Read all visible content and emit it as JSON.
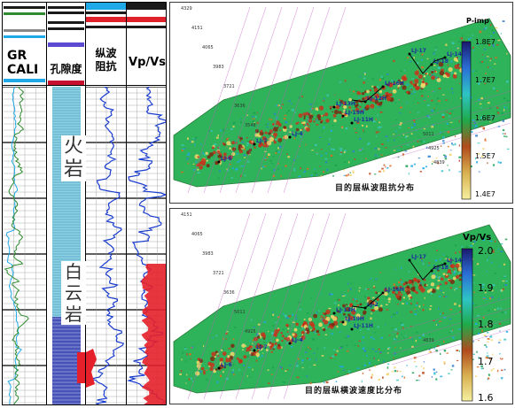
{
  "log_panel": {
    "tracks": [
      {
        "title": "GR\nCALI",
        "header_color": "#1fa9e8"
      },
      {
        "title": "孔隙度",
        "header_color": "#c8102e"
      },
      {
        "title": "纵波\n阻抗",
        "header_color": "#ffffff"
      },
      {
        "title": "Vp/Vs",
        "header_color": "#ffffff"
      }
    ],
    "overlays": [
      {
        "id": "lithology-volcanic",
        "text": "火\n岩"
      },
      {
        "id": "lithology-dolomite",
        "text": "白\n云\n岩"
      }
    ],
    "colors": {
      "gr_curve": "#2e8b2e",
      "cali_curve": "#1fa9e8",
      "porosity_fill": "#8ad3e6",
      "porosity_low": "#3d3fb2",
      "impedance_curve": "#1a3ccf",
      "vpvs_curve": "#1a3ccf",
      "high_fill": "#e6202a"
    }
  },
  "map_top": {
    "title": "目的层纵波阻抗分布",
    "colorbar": {
      "title": "P-imp",
      "ticks": [
        "1.8E7",
        "1.7E7",
        "1.6E7",
        "1.5E7",
        "1.4E7"
      ],
      "gradient": [
        "#1a1a6e",
        "#2a6fd6",
        "#2ec4c4",
        "#1faa4a",
        "#b14a1c",
        "#d8b050",
        "#f6f0a0"
      ]
    },
    "wells": [
      "LJ-17",
      "LJ-18",
      "LJ-14",
      "LJ-16H",
      "LJ-12H",
      "LJ-13H",
      "LJ-19H",
      "LJ-11H",
      "LJ-7",
      "LJ-6",
      "LJ-4"
    ],
    "contour_labels": [
      "4329",
      "4151",
      "4065",
      "3983",
      "3721",
      "3636",
      "3548",
      "5011",
      "4925",
      "4839"
    ]
  },
  "map_bottom": {
    "title": "目的层纵横波速度比分布",
    "colorbar": {
      "title": "Vp/Vs",
      "ticks": [
        "2.0",
        "1.9",
        "1.8",
        "1.7",
        "1.6"
      ],
      "gradient": [
        "#1a1a6e",
        "#2a6fd6",
        "#2ec4c4",
        "#1faa4a",
        "#b14a1c",
        "#d8b050",
        "#f6f0a0"
      ]
    },
    "wells": [
      "LJ-17",
      "LJ-18",
      "LJ-14",
      "LJ-16H",
      "LJ-2",
      "LJ-13H",
      "LJ-19H",
      "LJ-11H",
      "LJ-7",
      "LJ-6",
      "LJ-4"
    ],
    "contour_labels": [
      "4151",
      "4065",
      "3983",
      "3721",
      "3636",
      "5011",
      "4925",
      "4839"
    ]
  }
}
